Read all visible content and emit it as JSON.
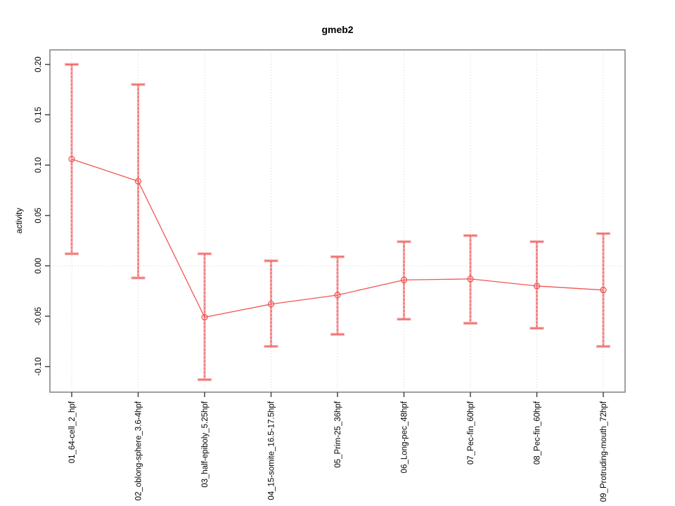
{
  "chart_data": {
    "type": "line",
    "title": "gmeb2",
    "ylabel": "activity",
    "xlabel": "",
    "categories": [
      "01_64-cell_2_hpf",
      "02_oblong-sphere_3.6-4hpf",
      "03_half-epiboly_5.25hpf",
      "04_15-somite_16.5-17.5hpf",
      "05_Prim-25_36hpf",
      "06_Long-pec_48hpf",
      "07_Pec-fin_60hpf",
      "08_Pec-fin_60hpf",
      "09_Protruding-mouth_72hpf"
    ],
    "series": [
      {
        "name": "gmeb2",
        "values": [
          0.106,
          0.084,
          -0.051,
          -0.038,
          -0.029,
          -0.014,
          -0.013,
          -0.02,
          -0.024
        ],
        "err_high": [
          0.2,
          0.18,
          0.012,
          0.005,
          0.009,
          0.024,
          0.03,
          0.024,
          0.032
        ],
        "err_low": [
          0.012,
          -0.012,
          -0.113,
          -0.08,
          -0.068,
          -0.053,
          -0.057,
          -0.062,
          -0.08
        ]
      }
    ],
    "yticks": [
      {
        "value": -0.1,
        "label": "-0.10"
      },
      {
        "value": -0.05,
        "label": "-0.05"
      },
      {
        "value": 0.0,
        "label": "0.00"
      },
      {
        "value": 0.05,
        "label": "0.05"
      },
      {
        "value": 0.1,
        "label": "0.10"
      },
      {
        "value": 0.15,
        "label": "0.15"
      },
      {
        "value": 0.2,
        "label": "0.20"
      }
    ],
    "ylim": [
      -0.1254,
      0.2144
    ],
    "grid": {
      "vertical_at_categories": true,
      "horizontal_at_zero": true,
      "style": "dotted"
    },
    "legend": "none",
    "colors": {
      "line": "#f25555",
      "marker": "#f25555",
      "error_band": "#f6abab",
      "error_dash": "#ef5858",
      "grid": "#d4d4d4",
      "box": "#888888",
      "tick": "#444444",
      "text": "#000000"
    }
  }
}
